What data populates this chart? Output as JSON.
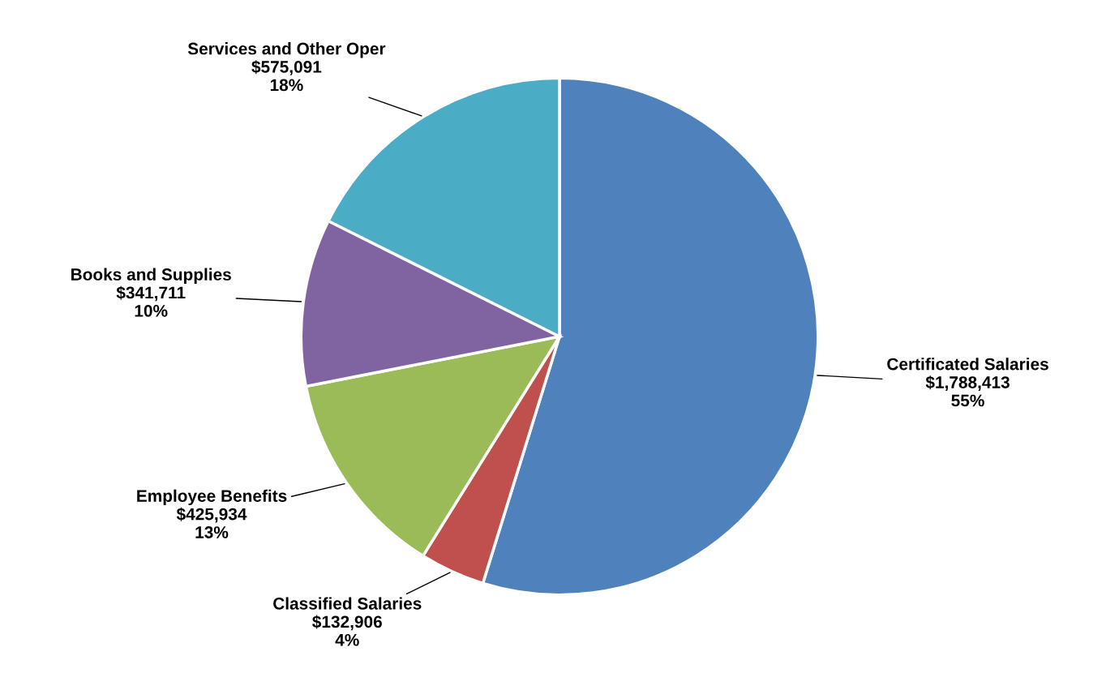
{
  "chart_data": {
    "type": "pie",
    "categories": [
      "Certificated Salaries",
      "Classified Salaries",
      "Employee Benefits",
      "Books and Supplies",
      "Services and Other Oper"
    ],
    "values": [
      1788413,
      132906,
      425934,
      341711,
      575091
    ],
    "value_labels": [
      "$1,788,413\n55%",
      "$132,906\n4%",
      "$425,934\n13%",
      "$341,711\n10%",
      "$575,091\n18%"
    ],
    "colors": [
      "#4f81bd",
      "#c0504d",
      "#9bbb59",
      "#8064a2",
      "#4bacc6"
    ]
  }
}
